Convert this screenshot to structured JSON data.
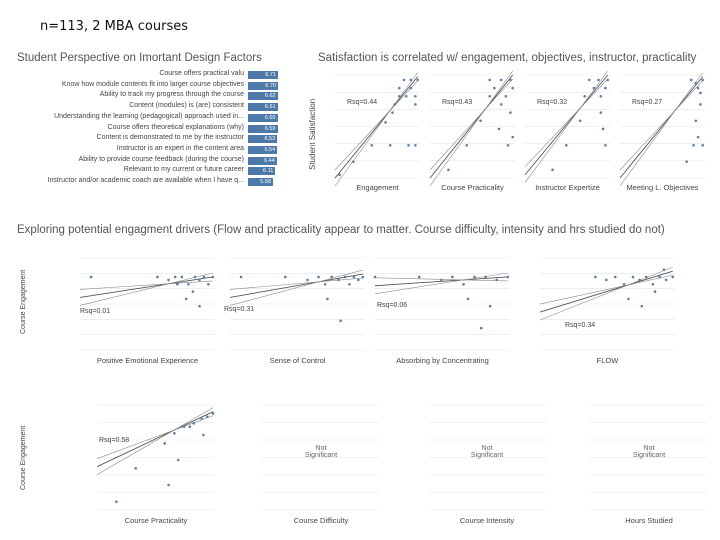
{
  "caption": "n=113, 2 MBA courses",
  "colors": {
    "bar": "#4d79a8",
    "dot": "#5a7fa8",
    "line": "#555555",
    "grid": "#e4e4e4",
    "bg": "#ffffff"
  },
  "perspective": {
    "title": "Student Perspective on Imortant Design Factors",
    "chart_data": {
      "type": "bar",
      "title": "Student Perspective on Imortant Design Factors",
      "categories": [
        "Course offers practical valu",
        "Know how module contents fit into larger course objectives",
        "Ability to track my progress through the course",
        "Content (modules) is (are) consistent",
        "Understanding the learning (pedagogical) approach used in...",
        "Course offers theoretical explanations (why)",
        "Content is demonstrated to me by the instructor",
        "Instructor is an expert in the content area",
        "Ability to provide course feedback (during the course)",
        "Relevant to my current or future career",
        "Instructor and/or academic coach are available when I have q..."
      ],
      "values": [
        6.71,
        6.7,
        6.62,
        6.61,
        6.6,
        6.59,
        6.53,
        6.54,
        6.44,
        6.11,
        5.58
      ],
      "value_labels": [
        "6.71",
        "6.70",
        "6.62",
        "6.61",
        "6.60",
        "6.59",
        "6.53",
        "6.54",
        "6.44",
        "6.11",
        "5.58"
      ],
      "xlim": [
        0,
        7
      ]
    }
  },
  "satisfaction": {
    "title": "Satisfaction is correlated w/ engagement, objectives, instructor, practicality",
    "ylabel": "Student Satisfaction",
    "chart_data": [
      {
        "type": "scatter",
        "xlabel": "Engagement",
        "rsq": "Rsq=0.44",
        "points": [
          [
            3.6,
            1.2
          ],
          [
            4.2,
            2.0
          ],
          [
            5.0,
            3.0
          ],
          [
            5.6,
            4.4
          ],
          [
            5.9,
            5.0
          ],
          [
            6.0,
            5.5
          ],
          [
            6.2,
            6.0
          ],
          [
            6.2,
            6.5
          ],
          [
            6.4,
            7.0
          ],
          [
            6.5,
            6.0
          ],
          [
            6.7,
            7.0
          ],
          [
            6.7,
            6.5
          ],
          [
            6.9,
            6.0
          ],
          [
            7.0,
            7.0
          ],
          [
            6.6,
            3.0
          ],
          [
            6.9,
            3.0
          ],
          [
            5.8,
            3.0
          ],
          [
            6.9,
            5.5
          ]
        ],
        "fit": [
          [
            3.4,
            1.0
          ],
          [
            7.0,
            7.2
          ]
        ]
      },
      {
        "type": "scatter",
        "xlabel": "Course Practicality",
        "rsq": "Rsq=0.43",
        "points": [
          [
            4.2,
            1.5
          ],
          [
            5.0,
            3.0
          ],
          [
            5.6,
            4.5
          ],
          [
            6.0,
            6.0
          ],
          [
            6.0,
            7.0
          ],
          [
            6.2,
            6.5
          ],
          [
            6.5,
            7.0
          ],
          [
            6.5,
            5.5
          ],
          [
            6.7,
            6.0
          ],
          [
            6.9,
            7.0
          ],
          [
            7.0,
            6.5
          ],
          [
            6.9,
            5.0
          ],
          [
            6.4,
            4.0
          ],
          [
            6.8,
            3.0
          ],
          [
            7.0,
            3.5
          ]
        ],
        "fit": [
          [
            3.4,
            1.0
          ],
          [
            7.0,
            7.3
          ]
        ]
      },
      {
        "type": "scatter",
        "xlabel": "Instructor Expertize",
        "rsq": "Rsq=0.32",
        "points": [
          [
            4.6,
            1.5
          ],
          [
            5.2,
            3.0
          ],
          [
            5.8,
            4.5
          ],
          [
            6.0,
            6.0
          ],
          [
            6.2,
            7.0
          ],
          [
            6.4,
            6.5
          ],
          [
            6.6,
            7.0
          ],
          [
            6.7,
            6.0
          ],
          [
            6.9,
            6.5
          ],
          [
            7.0,
            7.0
          ],
          [
            6.8,
            4.0
          ],
          [
            6.9,
            3.0
          ],
          [
            6.7,
            5.0
          ]
        ],
        "fit": [
          [
            3.4,
            1.2
          ],
          [
            7.0,
            7.3
          ]
        ]
      },
      {
        "type": "scatter",
        "xlabel": "Meeting L. Objectives",
        "rsq": "Rsq=0.27",
        "points": [
          [
            6.5,
            7.0
          ],
          [
            6.7,
            6.8
          ],
          [
            6.8,
            6.5
          ],
          [
            6.9,
            6.2
          ],
          [
            7.0,
            7.0
          ],
          [
            6.9,
            5.5
          ],
          [
            6.7,
            4.5
          ],
          [
            6.8,
            3.5
          ],
          [
            7.0,
            3.0
          ],
          [
            6.6,
            3.0
          ],
          [
            6.3,
            2.0
          ]
        ],
        "fit": [
          [
            3.4,
            1.0
          ],
          [
            7.0,
            7.2
          ]
        ]
      }
    ]
  },
  "drivers": {
    "title": "Exploring potential engagment drivers (Flow and practicality appear to matter. Course difficulty, intensity and hrs studied do not)",
    "ylabel": "Course Engagement",
    "chart_data": [
      {
        "type": "scatter",
        "xlabel": "Positive Emotional Experience",
        "rsq": "Rsq=0.01",
        "points": [
          [
            1.5,
            6.0
          ],
          [
            4.5,
            6.0
          ],
          [
            5.0,
            5.8
          ],
          [
            5.3,
            6.0
          ],
          [
            5.6,
            6.0
          ],
          [
            5.9,
            5.5
          ],
          [
            6.2,
            6.0
          ],
          [
            6.4,
            5.8
          ],
          [
            6.6,
            6.0
          ],
          [
            6.8,
            5.5
          ],
          [
            6.1,
            5.0
          ],
          [
            5.4,
            5.5
          ],
          [
            5.8,
            4.5
          ],
          [
            6.4,
            4.0
          ],
          [
            7.0,
            6.0
          ]
        ],
        "fit": [
          [
            1.0,
            4.6
          ],
          [
            7.0,
            6.0
          ]
        ]
      },
      {
        "type": "scatter",
        "xlabel": "Sense of Control",
        "rsq": "Rsq=0.31",
        "points": [
          [
            1.5,
            6.0
          ],
          [
            3.5,
            6.0
          ],
          [
            4.5,
            5.8
          ],
          [
            5.0,
            6.0
          ],
          [
            5.3,
            5.5
          ],
          [
            5.6,
            6.0
          ],
          [
            5.9,
            5.8
          ],
          [
            6.2,
            6.0
          ],
          [
            6.4,
            5.5
          ],
          [
            6.6,
            6.0
          ],
          [
            6.8,
            5.8
          ],
          [
            7.0,
            6.0
          ],
          [
            5.4,
            4.5
          ],
          [
            6.0,
            3.0
          ]
        ],
        "fit": [
          [
            1.0,
            4.6
          ],
          [
            7.0,
            6.2
          ]
        ]
      },
      {
        "type": "scatter",
        "xlabel": "Absorbing by Concentrating",
        "rsq": "Rsq=0.06",
        "points": [
          [
            1.0,
            6.0
          ],
          [
            3.0,
            6.0
          ],
          [
            4.0,
            5.8
          ],
          [
            4.5,
            6.0
          ],
          [
            5.0,
            5.5
          ],
          [
            5.5,
            6.0
          ],
          [
            6.0,
            6.0
          ],
          [
            6.5,
            5.8
          ],
          [
            7.0,
            6.0
          ],
          [
            5.2,
            4.5
          ],
          [
            6.2,
            4.0
          ],
          [
            5.8,
            2.5
          ]
        ],
        "fit": [
          [
            1.0,
            5.4
          ],
          [
            7.0,
            6.0
          ]
        ]
      },
      {
        "type": "scatter",
        "xlabel": "FLOW",
        "rsq": "Rsq=0.34",
        "points": [
          [
            3.5,
            6.0
          ],
          [
            4.0,
            5.8
          ],
          [
            4.4,
            6.0
          ],
          [
            4.8,
            5.5
          ],
          [
            5.2,
            6.0
          ],
          [
            5.5,
            5.8
          ],
          [
            5.8,
            6.0
          ],
          [
            6.1,
            5.5
          ],
          [
            6.4,
            6.0
          ],
          [
            6.7,
            5.8
          ],
          [
            7.0,
            6.0
          ],
          [
            5.0,
            4.5
          ],
          [
            5.6,
            4.0
          ],
          [
            6.2,
            5.0
          ],
          [
            6.6,
            6.5
          ]
        ],
        "fit": [
          [
            1.0,
            3.6
          ],
          [
            7.0,
            6.4
          ]
        ]
      },
      {
        "type": "scatter",
        "xlabel": "Course Practicality",
        "rsq": "Rsq=0.58",
        "points": [
          [
            2.0,
            1.5
          ],
          [
            3.0,
            3.5
          ],
          [
            4.5,
            5.0
          ],
          [
            5.0,
            5.6
          ],
          [
            5.5,
            6.0
          ],
          [
            6.0,
            6.2
          ],
          [
            6.4,
            6.5
          ],
          [
            6.7,
            6.6
          ],
          [
            7.0,
            6.8
          ],
          [
            5.8,
            6.0
          ],
          [
            6.5,
            5.5
          ],
          [
            4.7,
            2.5
          ],
          [
            5.2,
            4.0
          ]
        ],
        "fit": [
          [
            1.0,
            3.6
          ],
          [
            7.0,
            6.9
          ]
        ]
      },
      {
        "type": "scatter",
        "xlabel": "Course Difficulty",
        "note": "Not Significant",
        "points": []
      },
      {
        "type": "scatter",
        "xlabel": "Course Intensity",
        "note": "Not Significant",
        "points": []
      },
      {
        "type": "scatter",
        "xlabel": "Hours Studied",
        "note": "Not Significant",
        "points": []
      }
    ]
  }
}
